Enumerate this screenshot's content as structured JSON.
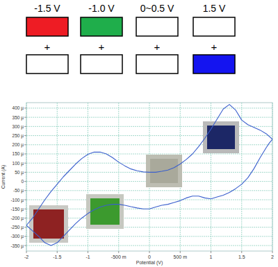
{
  "state_diagram": {
    "joiner": "+",
    "columns": [
      {
        "label": "-1.5 V",
        "top_color": "#ee1c24",
        "bottom_color": "#ffffff"
      },
      {
        "label": "-1.0 V",
        "top_color": "#1fae4b",
        "bottom_color": "#ffffff"
      },
      {
        "label": "0~0.5 V",
        "top_color": "#ffffff",
        "bottom_color": "#ffffff"
      },
      {
        "label": "1.5 V",
        "top_color": "#ffffff",
        "bottom_color": "#1414f0"
      }
    ]
  },
  "chart_data": {
    "type": "line",
    "x_label": "Potential (V)",
    "y_label": "Current (A)",
    "grid": true,
    "xlim": [
      -2,
      2
    ],
    "xticks": [
      -2,
      -1.5,
      -1,
      {
        "value": -0.5,
        "label": "-500 m"
      },
      0,
      {
        "value": 0.5,
        "label": "500 m"
      },
      1,
      1.5,
      2
    ],
    "ylim": [
      -0.00038,
      0.00043
    ],
    "yticks": [
      {
        "value": 0.0004,
        "label": "400 µ"
      },
      {
        "value": 0.00035,
        "label": "350 µ"
      },
      {
        "value": 0.0003,
        "label": "300 µ"
      },
      {
        "value": 0.00025,
        "label": "250 µ"
      },
      {
        "value": 0.0002,
        "label": "200 µ"
      },
      {
        "value": 0.00015,
        "label": "150 µ"
      },
      {
        "value": 0.0001,
        "label": "100 µ"
      },
      {
        "value": 5e-05,
        "label": "50 µ"
      },
      0,
      {
        "value": -5e-05,
        "label": "-50 µ"
      },
      {
        "value": -0.0001,
        "label": "-100 µ"
      },
      {
        "value": -0.00015,
        "label": "-150 µ"
      },
      {
        "value": -0.0002,
        "label": "-200 µ"
      },
      {
        "value": -0.00025,
        "label": "-250 µ"
      },
      {
        "value": -0.0003,
        "label": "-300 µ"
      },
      {
        "value": -0.00035,
        "label": "-350 µ"
      }
    ],
    "x": [
      -2,
      -1.9,
      -1.8,
      -1.7,
      -1.6,
      -1.5,
      -1.4,
      -1.3,
      -1.2,
      -1.1,
      -1.0,
      -0.9,
      -0.8,
      -0.7,
      -0.6,
      -0.5,
      -0.4,
      -0.3,
      -0.2,
      -0.1,
      0,
      0.1,
      0.2,
      0.3,
      0.4,
      0.5,
      0.6,
      0.7,
      0.8,
      0.9,
      1.0,
      1.1,
      1.2,
      1.3,
      1.4,
      1.5,
      1.6,
      1.7,
      1.8,
      1.9,
      2.0,
      1.95,
      1.9,
      1.8,
      1.7,
      1.6,
      1.5,
      1.4,
      1.3,
      1.2,
      1.1,
      1.0,
      0.9,
      0.8,
      0.7,
      0.6,
      0.5,
      0.4,
      0.3,
      0.2,
      0.1,
      0,
      -0.1,
      -0.2,
      -0.3,
      -0.4,
      -0.5,
      -0.6,
      -0.7,
      -0.8,
      -0.9,
      -1.0,
      -1.1,
      -1.2,
      -1.3,
      -1.4,
      -1.5,
      -1.6,
      -1.7,
      -1.8,
      -1.9,
      -2
    ],
    "series": [
      {
        "color": "#3a5fcd",
        "values": [
          -0.00024,
          -0.0002,
          -0.00015,
          -0.0001,
          -5.5e-05,
          -1.5e-05,
          2.5e-05,
          6e-05,
          9.5e-05,
          0.000125,
          0.000148,
          0.00016,
          0.00016,
          0.00015,
          0.00013,
          0.000105,
          8.5e-05,
          6.8e-05,
          5.8e-05,
          5.2e-05,
          5e-05,
          5e-05,
          5.5e-05,
          6.2e-05,
          7.5e-05,
          9.5e-05,
          0.00012,
          0.00015,
          0.00019,
          0.000235,
          0.000285,
          0.00034,
          0.000395,
          0.00042,
          0.00039,
          0.000335,
          0.00031,
          0.000295,
          0.00028,
          0.00026,
          0.00023,
          0.00021,
          0.000185,
          0.00013,
          7e-05,
          2e-05,
          -1.5e-05,
          -4e-05,
          -6e-05,
          -7.5e-05,
          -8.5e-05,
          -9.5e-05,
          -9e-05,
          -8e-05,
          -8e-05,
          -9e-05,
          -0.000105,
          -0.000115,
          -0.000125,
          -0.00013,
          -0.00014,
          -0.00015,
          -0.00015,
          -0.000145,
          -0.000138,
          -0.00013,
          -0.000125,
          -0.000125,
          -0.00013,
          -0.00014,
          -0.000155,
          -0.000175,
          -0.0002,
          -0.00023,
          -0.000265,
          -0.0003,
          -0.000335,
          -0.00035,
          -0.000335,
          -0.0003,
          -0.00027,
          -0.00024
        ]
      }
    ]
  }
}
